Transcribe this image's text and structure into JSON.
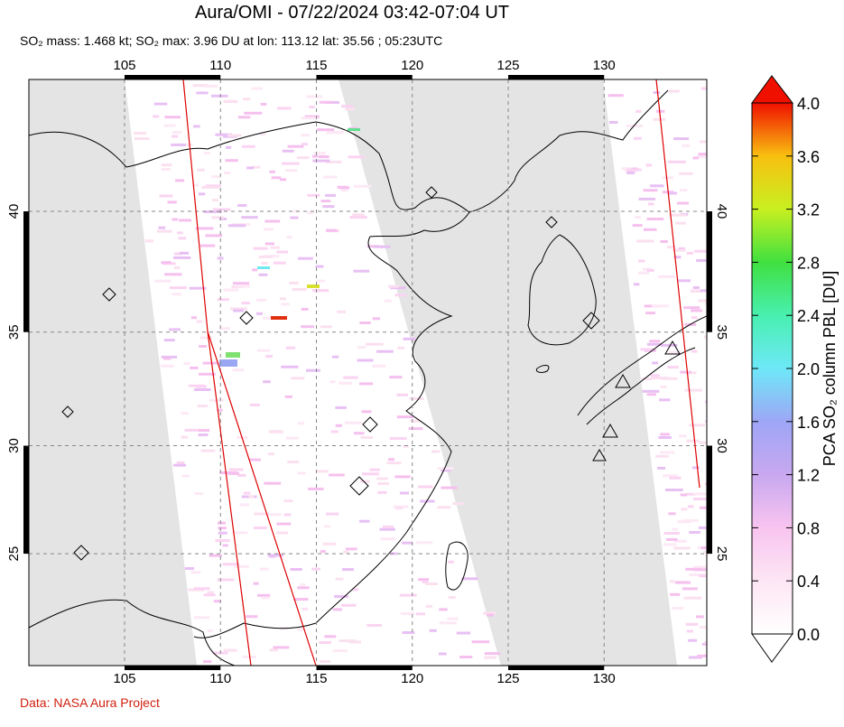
{
  "header": {
    "title": "Aura/OMI - 07/22/2024 03:42-07:04 UT",
    "subtitle": "SO₂ mass: 1.468 kt; SO₂ max: 3.96 DU at lon: 113.12 lat: 35.56 ; 05:23UTC"
  },
  "map": {
    "lon_ticks": [
      105,
      110,
      115,
      120,
      125,
      130
    ],
    "lat_ticks": [
      40,
      35,
      30,
      25
    ]
  },
  "colorbar": {
    "label": "PCA SO₂ column PBL [DU]",
    "lim": [
      0,
      4
    ],
    "ticks": [
      {
        "value": 0,
        "label": "0.0"
      },
      0.4,
      0.8,
      1.2,
      1.6,
      {
        "value": 2,
        "label": "2.0"
      },
      2.4,
      2.8,
      3.2,
      3.6,
      {
        "value": 4,
        "label": "4.0"
      }
    ]
  },
  "footer": {
    "credit": "Data: NASA Aura Project"
  }
}
